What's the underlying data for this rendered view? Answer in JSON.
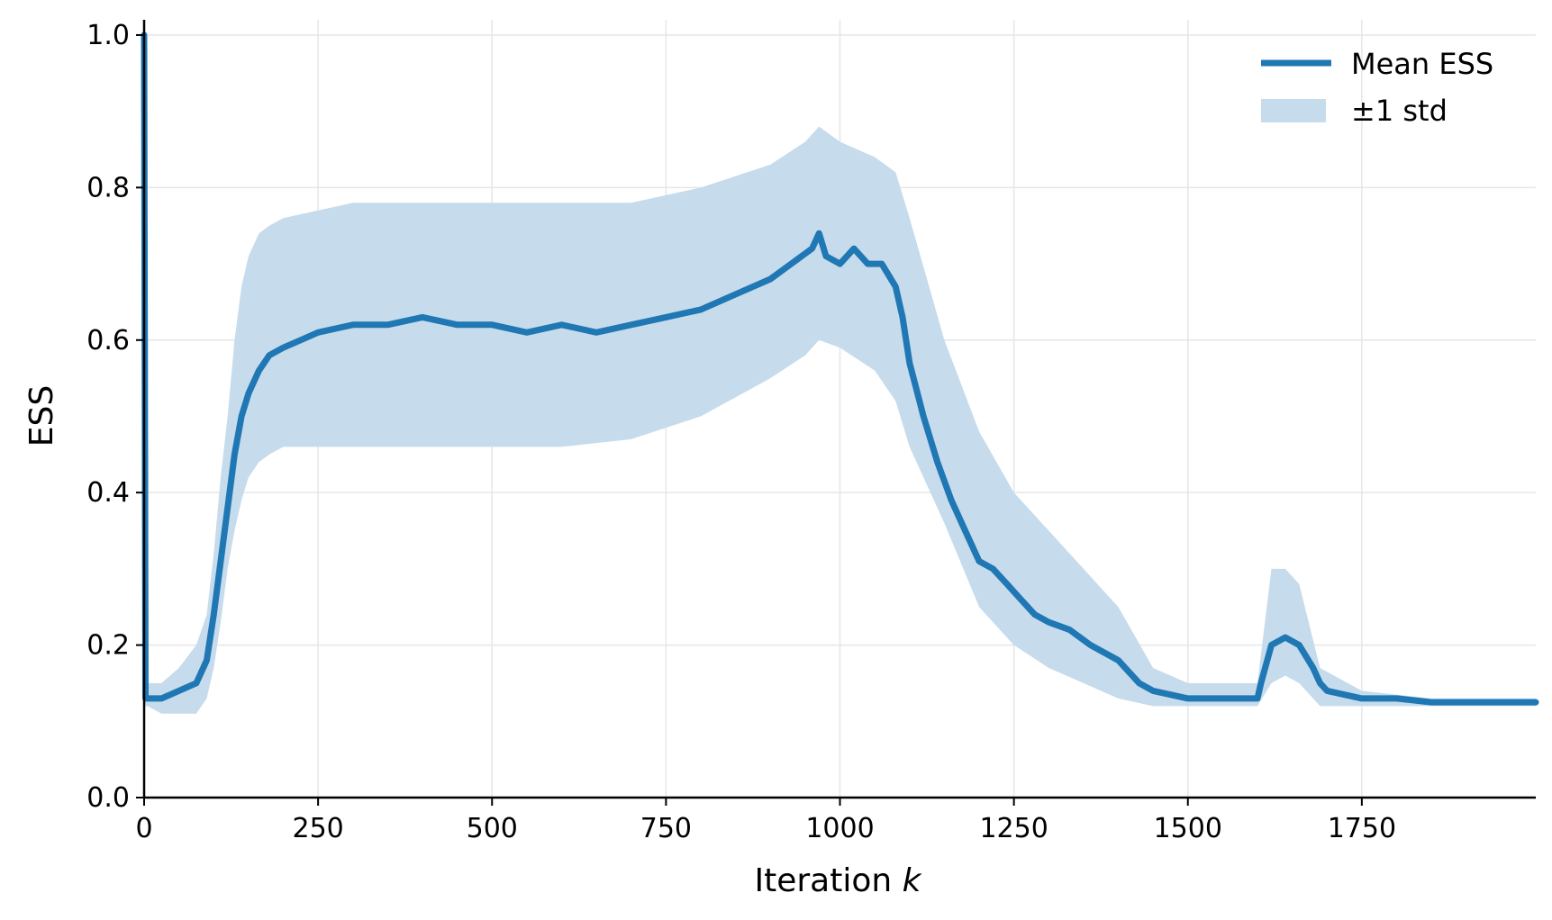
{
  "chart_data": {
    "type": "line",
    "title": "",
    "xlabel": "Iteration",
    "xlabel_var": "k",
    "ylabel": "ESS",
    "xlim": [
      0,
      2000
    ],
    "ylim": [
      0.0,
      1.02
    ],
    "x_ticks": [
      0,
      250,
      500,
      750,
      1000,
      1250,
      1500,
      1750
    ],
    "x_tick_labels": [
      "0",
      "250",
      "500",
      "750",
      "1000",
      "1250",
      "1500",
      "1750"
    ],
    "y_ticks": [
      0.0,
      0.2,
      0.4,
      0.6,
      0.8,
      1.0
    ],
    "y_tick_labels": [
      "0.0",
      "0.2",
      "0.4",
      "0.6",
      "0.8",
      "1.0"
    ],
    "grid": true,
    "legend_position": "top-right",
    "series": [
      {
        "name": "Mean ESS",
        "kind": "line",
        "color": "#1f77b4",
        "x": [
          0,
          2,
          5,
          25,
          50,
          75,
          90,
          100,
          110,
          120,
          130,
          140,
          150,
          165,
          180,
          200,
          225,
          250,
          300,
          350,
          400,
          450,
          500,
          550,
          600,
          650,
          700,
          750,
          800,
          850,
          900,
          930,
          960,
          970,
          980,
          1000,
          1020,
          1040,
          1060,
          1080,
          1090,
          1100,
          1120,
          1140,
          1160,
          1180,
          1200,
          1220,
          1240,
          1260,
          1280,
          1300,
          1330,
          1360,
          1400,
          1430,
          1450,
          1500,
          1550,
          1600,
          1605,
          1620,
          1640,
          1660,
          1680,
          1690,
          1700,
          1750,
          1800,
          1850,
          1900,
          1950,
          2000
        ],
        "values": [
          1.0,
          0.13,
          0.13,
          0.13,
          0.14,
          0.15,
          0.18,
          0.24,
          0.31,
          0.38,
          0.45,
          0.5,
          0.53,
          0.56,
          0.58,
          0.59,
          0.6,
          0.61,
          0.62,
          0.62,
          0.63,
          0.62,
          0.62,
          0.61,
          0.62,
          0.61,
          0.62,
          0.63,
          0.64,
          0.66,
          0.68,
          0.7,
          0.72,
          0.74,
          0.71,
          0.7,
          0.72,
          0.7,
          0.7,
          0.67,
          0.63,
          0.57,
          0.5,
          0.44,
          0.39,
          0.35,
          0.31,
          0.3,
          0.28,
          0.26,
          0.24,
          0.23,
          0.22,
          0.2,
          0.18,
          0.15,
          0.14,
          0.13,
          0.13,
          0.13,
          0.15,
          0.2,
          0.21,
          0.2,
          0.17,
          0.15,
          0.14,
          0.13,
          0.13,
          0.125,
          0.125,
          0.125,
          0.125
        ]
      },
      {
        "name": "±1 std",
        "kind": "band",
        "color": "#c6dbec",
        "x": [
          0,
          5,
          25,
          50,
          75,
          90,
          100,
          110,
          120,
          130,
          140,
          150,
          165,
          180,
          200,
          250,
          300,
          400,
          500,
          600,
          700,
          800,
          900,
          950,
          970,
          1000,
          1050,
          1080,
          1100,
          1150,
          1200,
          1250,
          1300,
          1350,
          1400,
          1450,
          1500,
          1600,
          1620,
          1640,
          1660,
          1690,
          1750,
          1850,
          2000
        ],
        "lower": [
          0.12,
          0.12,
          0.11,
          0.11,
          0.11,
          0.13,
          0.17,
          0.23,
          0.3,
          0.35,
          0.39,
          0.42,
          0.44,
          0.45,
          0.46,
          0.46,
          0.46,
          0.46,
          0.46,
          0.46,
          0.47,
          0.5,
          0.55,
          0.58,
          0.6,
          0.59,
          0.56,
          0.52,
          0.46,
          0.36,
          0.25,
          0.2,
          0.17,
          0.15,
          0.13,
          0.12,
          0.12,
          0.12,
          0.15,
          0.16,
          0.15,
          0.12,
          0.12,
          0.12,
          0.12
        ],
        "upper": [
          0.14,
          0.15,
          0.15,
          0.17,
          0.2,
          0.24,
          0.32,
          0.42,
          0.5,
          0.6,
          0.67,
          0.71,
          0.74,
          0.75,
          0.76,
          0.77,
          0.78,
          0.78,
          0.78,
          0.78,
          0.78,
          0.8,
          0.83,
          0.86,
          0.88,
          0.86,
          0.84,
          0.82,
          0.76,
          0.6,
          0.48,
          0.4,
          0.35,
          0.3,
          0.25,
          0.17,
          0.15,
          0.15,
          0.3,
          0.3,
          0.28,
          0.17,
          0.14,
          0.13,
          0.13
        ]
      }
    ]
  }
}
